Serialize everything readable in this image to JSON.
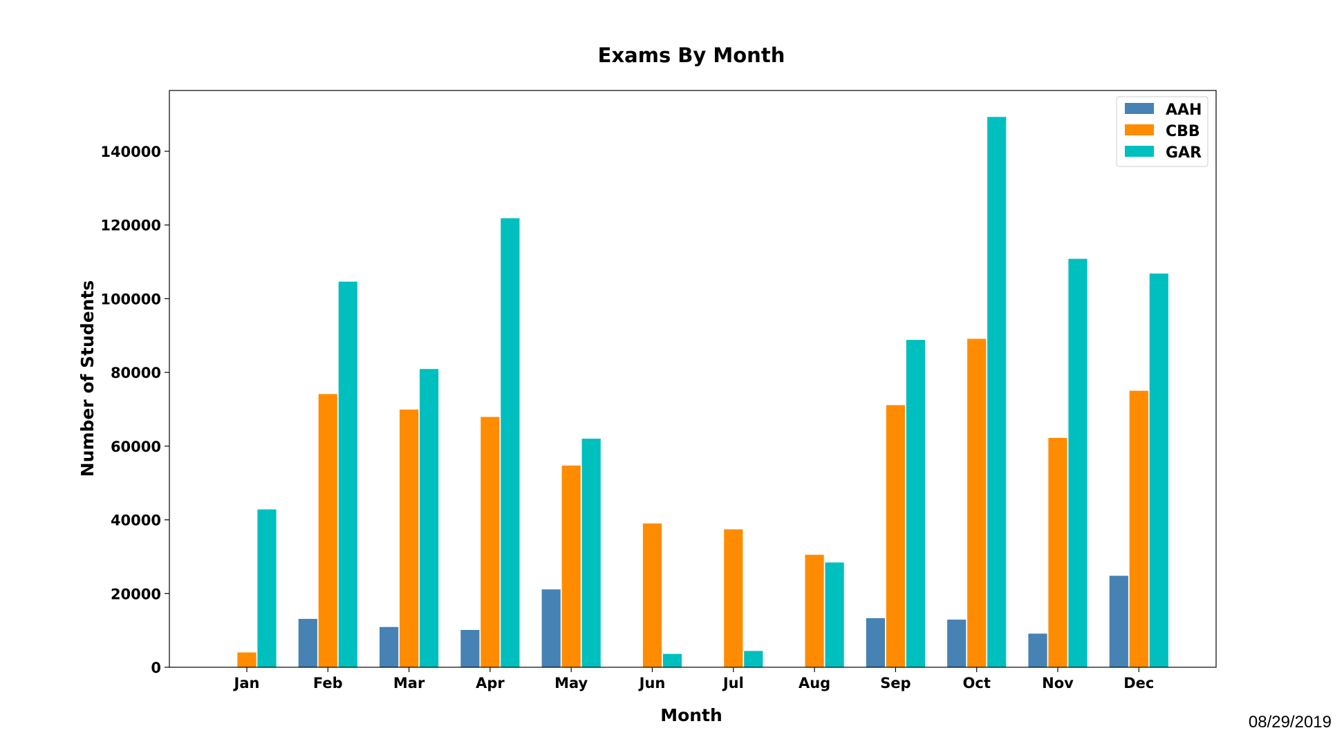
{
  "chart_data": {
    "type": "bar",
    "title": "Exams By Month",
    "xlabel": "Month",
    "ylabel": "Number of Students",
    "categories": [
      "Jan",
      "Feb",
      "Mar",
      "Apr",
      "May",
      "Jun",
      "Jul",
      "Aug",
      "Sep",
      "Oct",
      "Nov",
      "Dec"
    ],
    "series": [
      {
        "name": "AAH",
        "color": "#4682b4",
        "values": [
          0,
          13200,
          11000,
          10200,
          21200,
          0,
          0,
          0,
          13400,
          13000,
          9200,
          24900
        ]
      },
      {
        "name": "CBB",
        "color": "#ff8c00",
        "values": [
          4100,
          74200,
          70000,
          68000,
          54800,
          39100,
          37500,
          30600,
          71200,
          89200,
          62300,
          75100
        ]
      },
      {
        "name": "GAR",
        "color": "#00bfbf",
        "values": [
          42900,
          104700,
          81000,
          121900,
          62100,
          3700,
          4500,
          28500,
          88900,
          149400,
          110900,
          106900
        ]
      }
    ],
    "ylim": [
      0,
      156500
    ],
    "yticks": [
      0,
      20000,
      40000,
      60000,
      80000,
      100000,
      120000,
      140000
    ],
    "ytick_labels": [
      "0",
      "20000",
      "40000",
      "60000",
      "80000",
      "100000",
      "120000",
      "140000"
    ],
    "legend": "top-right",
    "grid": false
  },
  "footer": {
    "date": "08/29/2019"
  }
}
